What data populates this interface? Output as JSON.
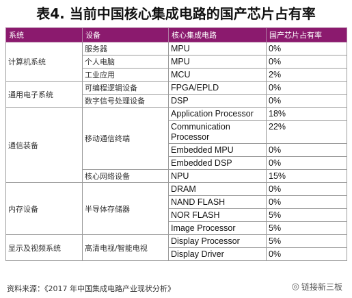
{
  "title": "表4. 当前中国核心集成电路的国产芯片占有率",
  "headers": [
    "系统",
    "设备",
    "核心集成电路",
    "国产芯片占有率"
  ],
  "rows": [
    {
      "system": "计算机系统",
      "device": "服务器",
      "chip": "MPU",
      "share": "0%"
    },
    {
      "system": "",
      "device": "个人电脑",
      "chip": "MPU",
      "share": "0%"
    },
    {
      "system": "",
      "device": "工业应用",
      "chip": "MCU",
      "share": "2%"
    },
    {
      "system": "通用电子系统",
      "device": "可编程逻辑设备",
      "chip": "FPGA/EPLD",
      "share": "0%"
    },
    {
      "system": "",
      "device": "数字信号处理设备",
      "chip": "DSP",
      "share": "0%"
    },
    {
      "system": "通信装备",
      "device": "移动通信终端",
      "chip": "Application Processor",
      "share": "18%"
    },
    {
      "system": "",
      "device": "",
      "chip": "Communication Processor",
      "share": "22%"
    },
    {
      "system": "",
      "device": "",
      "chip": "Embedded MPU",
      "share": "0%"
    },
    {
      "system": "",
      "device": "",
      "chip": "Embedded DSP",
      "share": "0%"
    },
    {
      "system": "",
      "device": "核心网络设备",
      "chip": "NPU",
      "share": "15%"
    },
    {
      "system": "内存设备",
      "device": "半导体存储器",
      "chip": "DRAM",
      "share": "0%"
    },
    {
      "system": "",
      "device": "",
      "chip": "NAND FLASH",
      "share": "0%"
    },
    {
      "system": "",
      "device": "",
      "chip": "NOR FLASH",
      "share": "5%"
    },
    {
      "system": "",
      "device": "",
      "chip": "Image Processor",
      "share": "5%"
    },
    {
      "system": "显示及视频系统",
      "device": "高清电视/智能电视",
      "chip": "Display Processor",
      "share": "5%"
    },
    {
      "system": "",
      "device": "",
      "chip": "Display Driver",
      "share": "0%"
    }
  ],
  "source": "资料来源：《2017 年中国集成电路产业现状分析》",
  "watermark": "链接新三板",
  "colors": {
    "header_bg": "#8b1a6e",
    "header_text": "#ffffff"
  }
}
